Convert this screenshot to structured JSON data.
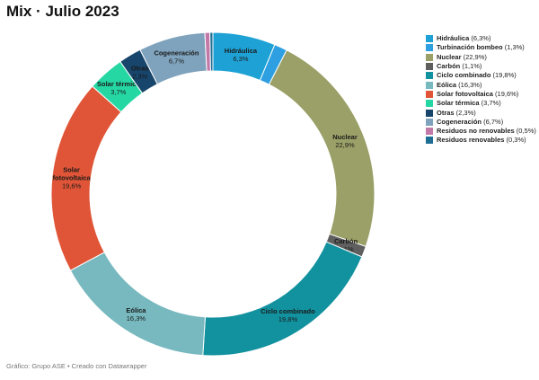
{
  "chart_data": {
    "type": "pie",
    "title": "Mix · Julio 2023",
    "source": "Gráfico: Grupo ASE • Creado con Datawrapper",
    "slices": [
      {
        "name": "Hidráulica",
        "value": 6.3,
        "value_label": "6,3%",
        "color": "#1ea2d6",
        "show_label": true
      },
      {
        "name": "Turbinación bombeo",
        "value": 1.3,
        "value_label": "1,3%",
        "color": "#2e9fe0",
        "show_label": false
      },
      {
        "name": "Nuclear",
        "value": 22.9,
        "value_label": "22,9%",
        "color": "#9aa067",
        "show_label": true
      },
      {
        "name": "Carbón",
        "value": 1.1,
        "value_label": "1,1%",
        "color": "#5f5f5f",
        "show_label": true
      },
      {
        "name": "Ciclo combinado",
        "value": 19.8,
        "value_label": "19,8%",
        "color": "#12919e",
        "show_label": true
      },
      {
        "name": "Eólica",
        "value": 16.3,
        "value_label": "16,3%",
        "color": "#77b9bf",
        "show_label": true
      },
      {
        "name": "Solar fotovoltaica",
        "value": 19.6,
        "value_label": "19,6%",
        "color": "#e05537",
        "show_label": true,
        "label_lines": [
          "Solar",
          "fotovoltaica"
        ]
      },
      {
        "name": "Solar térmica",
        "value": 3.7,
        "value_label": "3,7%",
        "color": "#25d7a3",
        "show_label": true
      },
      {
        "name": "Otras",
        "value": 2.3,
        "value_label": "2,3%",
        "color": "#17456b",
        "show_label": true
      },
      {
        "name": "Cogeneración",
        "value": 6.7,
        "value_label": "6,7%",
        "color": "#7fa3bd",
        "show_label": true
      },
      {
        "name": "Residuos no renovables",
        "value": 0.5,
        "value_label": "0,5%",
        "color": "#c379a8",
        "show_label": false
      },
      {
        "name": "Residuos renovables",
        "value": 0.3,
        "value_label": "0,3%",
        "color": "#1f6f95",
        "show_label": false
      }
    ],
    "legend_position": "top-right"
  }
}
